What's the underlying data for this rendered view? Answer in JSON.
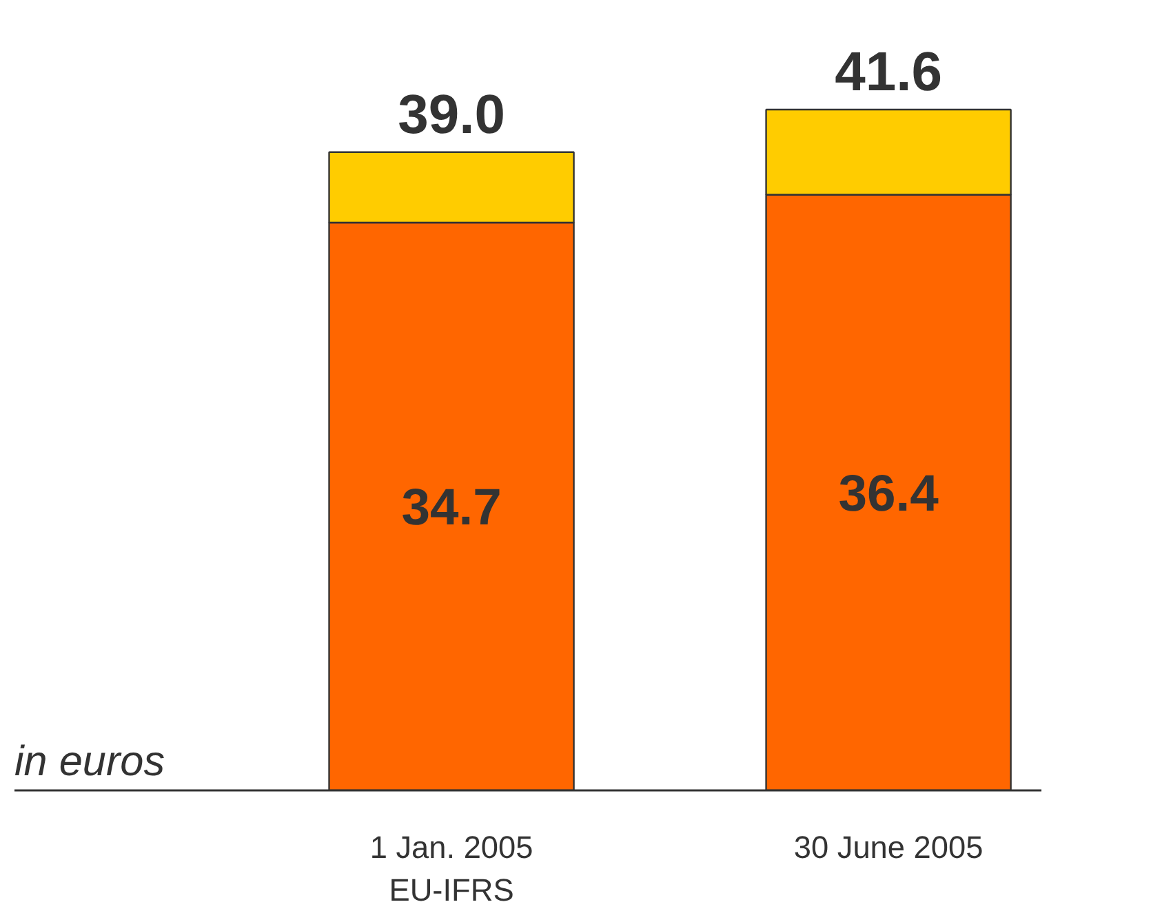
{
  "chart_data": {
    "type": "bar",
    "stacked": true,
    "categories": [
      "1 Jan. 2005\nEU-IFRS",
      "30 June 2005"
    ],
    "series": [
      {
        "color": "#ff6600",
        "values": [
          34.7,
          36.4
        ],
        "value_labels": [
          "34.7",
          "36.4"
        ]
      },
      {
        "color": "#ffcc00",
        "values": [
          4.3,
          5.2
        ]
      }
    ],
    "totals": [
      "39.0",
      "41.6"
    ],
    "annotations": [
      "in euros"
    ],
    "grid": false
  }
}
